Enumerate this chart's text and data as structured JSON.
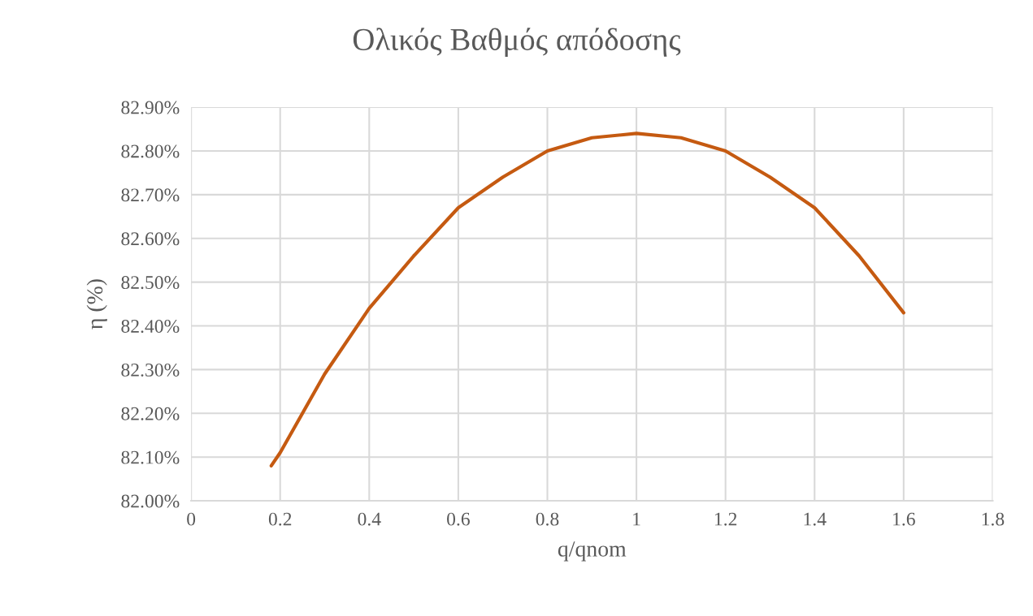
{
  "chart_data": {
    "type": "line",
    "title": "Ολικός Βαθμός απόδοσης",
    "xlabel": "q/qnom",
    "ylabel": "η (%)",
    "x": [
      0.18,
      0.2,
      0.3,
      0.4,
      0.5,
      0.6,
      0.7,
      0.8,
      0.9,
      1.0,
      1.1,
      1.2,
      1.3,
      1.4,
      1.5,
      1.6
    ],
    "series": [
      {
        "color": "#c55a11",
        "values": [
          82.08,
          82.11,
          82.29,
          82.44,
          82.56,
          82.67,
          82.74,
          82.8,
          82.83,
          82.84,
          82.83,
          82.8,
          82.74,
          82.67,
          82.56,
          82.43
        ]
      }
    ],
    "xlim": [
      0,
      1.8
    ],
    "xticks": [
      0,
      0.2,
      0.4,
      0.6,
      0.8,
      1,
      1.2,
      1.4,
      1.6,
      1.8
    ],
    "ylim": [
      82.0,
      82.9
    ],
    "yticks": [
      {
        "value": 82.0,
        "label": "82.00%"
      },
      {
        "value": 82.1,
        "label": "82.10%"
      },
      {
        "value": 82.2,
        "label": "82.20%"
      },
      {
        "value": 82.3,
        "label": "82.30%"
      },
      {
        "value": 82.4,
        "label": "82.40%"
      },
      {
        "value": 82.5,
        "label": "82.50%"
      },
      {
        "value": 82.6,
        "label": "82.60%"
      },
      {
        "value": 82.7,
        "label": "82.70%"
      },
      {
        "value": 82.8,
        "label": "82.80%"
      },
      {
        "value": 82.9,
        "label": "82.90%"
      }
    ],
    "grid": true,
    "marker": "none",
    "line_style": "solid",
    "legend": false
  }
}
